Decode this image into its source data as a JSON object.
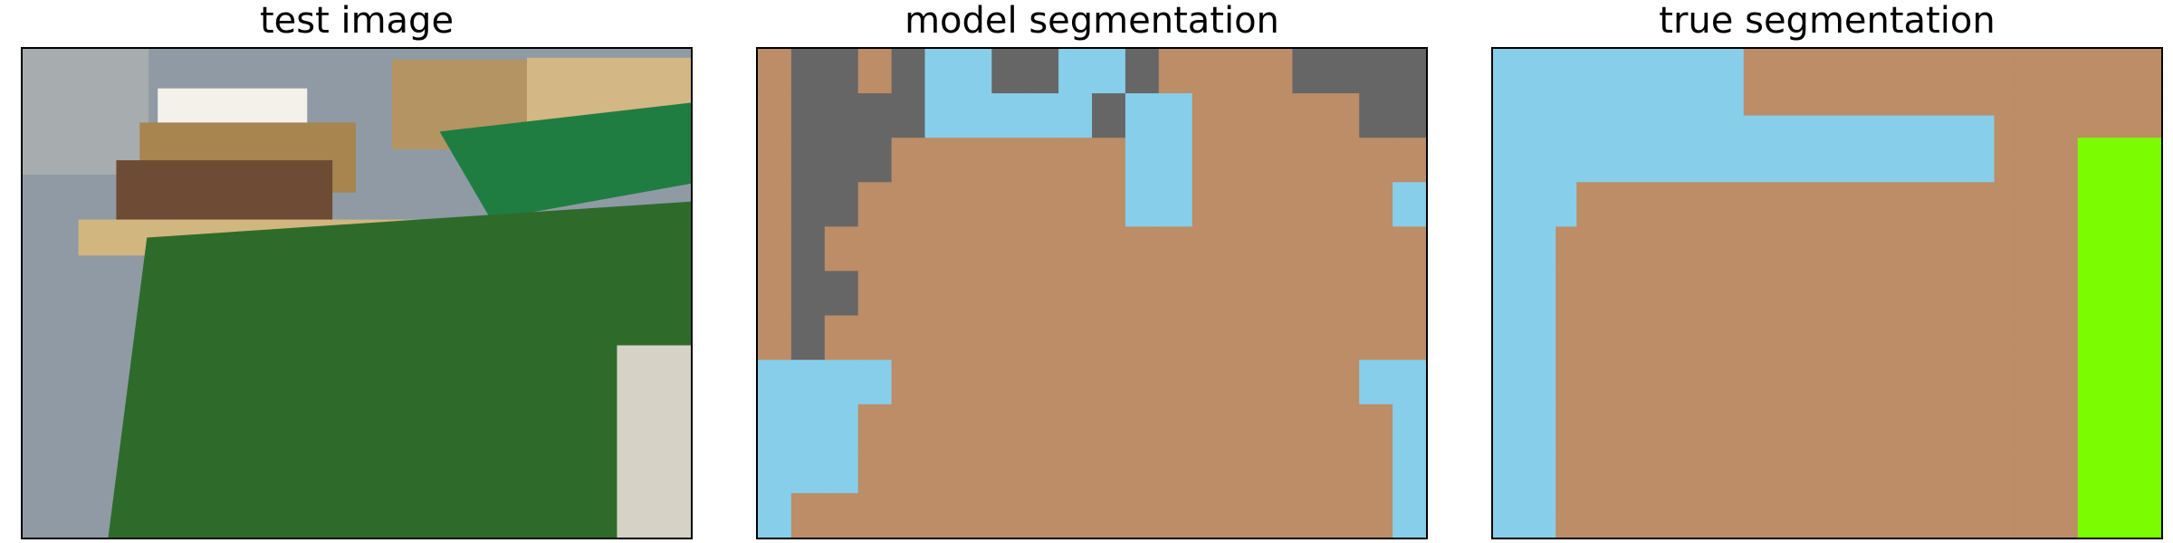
{
  "figure": {
    "panels": [
      {
        "id": "test-image",
        "title": "test image"
      },
      {
        "id": "model-segmentation",
        "title": "model segmentation"
      },
      {
        "id": "true-segmentation",
        "title": "true segmentation"
      }
    ]
  },
  "palette": {
    "B": "#bc8d66",
    "D": "#666666",
    "L": "#87ceeb",
    "G": "#7cfc00"
  },
  "segmentations": {
    "model": [
      "BDDBDLLDDLLDBBBBDDDD",
      "BDDDDLLLLLDLLBBBBBDD",
      "BDDDBBBBBBBLLBBBBBBB",
      "BDDBBBBBBBBLLBBBBBBL",
      "BDBBBBBBBBBBBBBBBBBB",
      "BDDBBBBBBBBBBBBBBBBB",
      "BDBBBBBBBBBBBBBBBBBB",
      "LLLLBBBBBBBBBBBBBBLL",
      "LLLBBBBBBBBBBBBBBBBL",
      "LLLBBBBBBBBBBBBBBBBL",
      "LBBBBBBBBBBBBBBBBBBL"
    ],
    "truth": [
      "LLLLLLLLLLLLBBBBBBBBBBBBBBBBBBBB",
      "LLLLLLLLLLLLBBBBBBBBBBBBBBBBBBBB",
      "LLLLLLLLLLLLBBBBBBBBBBBBBBBBBBBB",
      "LLLLLLLLLLLLLLLLLLLLLLLLBBBBBBBB",
      "LLLLLLLLLLLLLLLLLLLLLLLLBBBBGGGG",
      "LLLLLLLLLLLLLLLLLLLLLLLLBBBBGGGG",
      "LLLLBBBBBBBBBBBBBBBBBBBBBBBBGGGG",
      "LLLLBBBBBBBBBBBBBBBBBBBBBBBBGGGG",
      "LLLBBBBBBBBBBBBBBBBBBBBBBBBBGGGG",
      "LLLBBBBBBBBBBBBBBBBBBBBBBBBBGGGG",
      "LLLBBBBBBBBBBBBBBBBBBBBBBBBBGGGG",
      "LLLBBBBBBBBBBBBBBBBBBBBBBBBBGGGG",
      "LLLBBBBBBBBBBBBBBBBBBBBBBBBBGGGG",
      "LLLBBBBBBBBBBBBBBBBBBBBBBBBBGGGG",
      "LLLBBBBBBBBBBBBBBBBBBBBBBBBBGGGG",
      "LLLBBBBBBBBBBBBBBBBBBBBBBBBBGGGG",
      "LLLBBBBBBBBBBBBBBBBBBBBBBBBBGGGG",
      "LLLBBBBBBBBBBBBBBBBBBBBBBBBBGGGG",
      "LLLBBBBBBBBBBBBBBBBBBBBBBBBBGGGG",
      "LLLBBBBBBBBBBBBBBBBBBBBBBBBBGGGG",
      "LLLBBBBBBBBBBBBBBBBBBBBBBBBBGGGG",
      "LLLBBBBBBBBBBBBBBBBBBBBBBBBBGGGG"
    ]
  }
}
